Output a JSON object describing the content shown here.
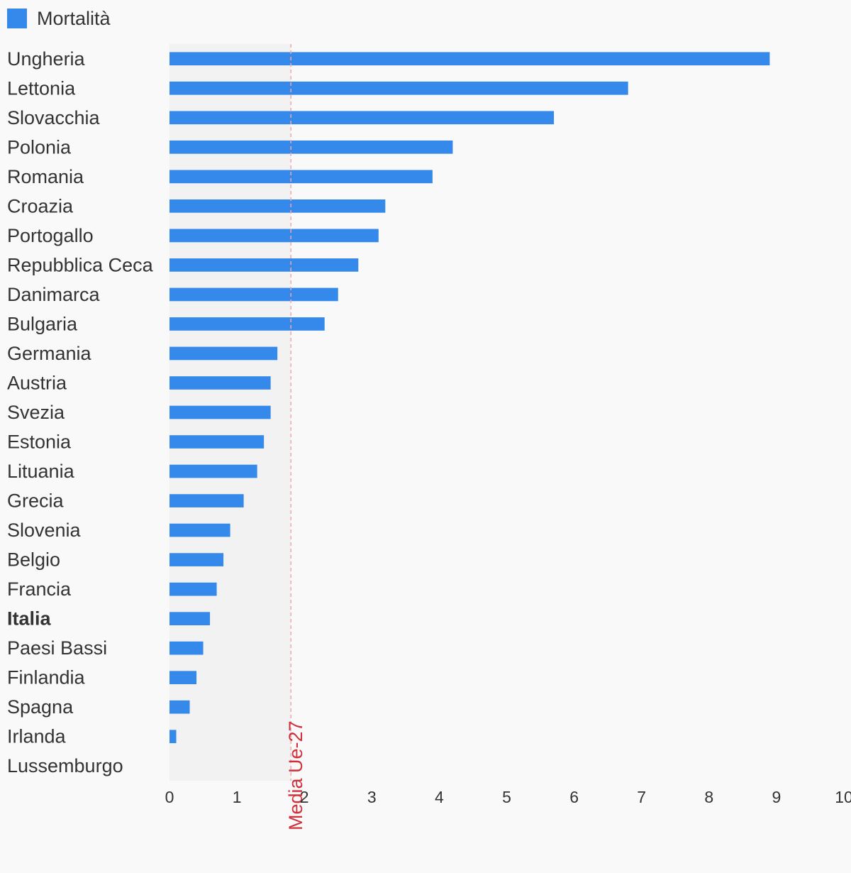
{
  "chart_data": {
    "type": "bar",
    "orientation": "horizontal",
    "categories": [
      "Ungheria",
      "Lettonia",
      "Slovacchia",
      "Polonia",
      "Romania",
      "Croazia",
      "Portogallo",
      "Repubblica Ceca",
      "Danimarca",
      "Bulgaria",
      "Germania",
      "Austria",
      "Svezia",
      "Estonia",
      "Lituania",
      "Grecia",
      "Slovenia",
      "Belgio",
      "Francia",
      "Italia",
      "Paesi Bassi",
      "Finlandia",
      "Spagna",
      "Irlanda",
      "Lussemburgo"
    ],
    "highlighted_category": "Italia",
    "series": [
      {
        "name": "Mortalità",
        "color": "#3589ea",
        "values": [
          8.9,
          6.8,
          5.7,
          4.2,
          3.9,
          3.2,
          3.1,
          2.8,
          2.5,
          2.3,
          1.6,
          1.5,
          1.5,
          1.4,
          1.3,
          1.1,
          0.9,
          0.8,
          0.7,
          0.6,
          0.5,
          0.4,
          0.3,
          0.1,
          0.0
        ]
      }
    ],
    "xlim": [
      0,
      10
    ],
    "xticks": [
      "0",
      "1",
      "2",
      "3",
      "4",
      "5",
      "6",
      "7",
      "8",
      "9",
      "10"
    ],
    "reference_line": {
      "label": "Media Ue-27",
      "value": 1.8,
      "color": "#d12f3a"
    },
    "shaded_region": [
      0,
      1.8
    ],
    "legend_position": "top-left",
    "grid": false
  }
}
